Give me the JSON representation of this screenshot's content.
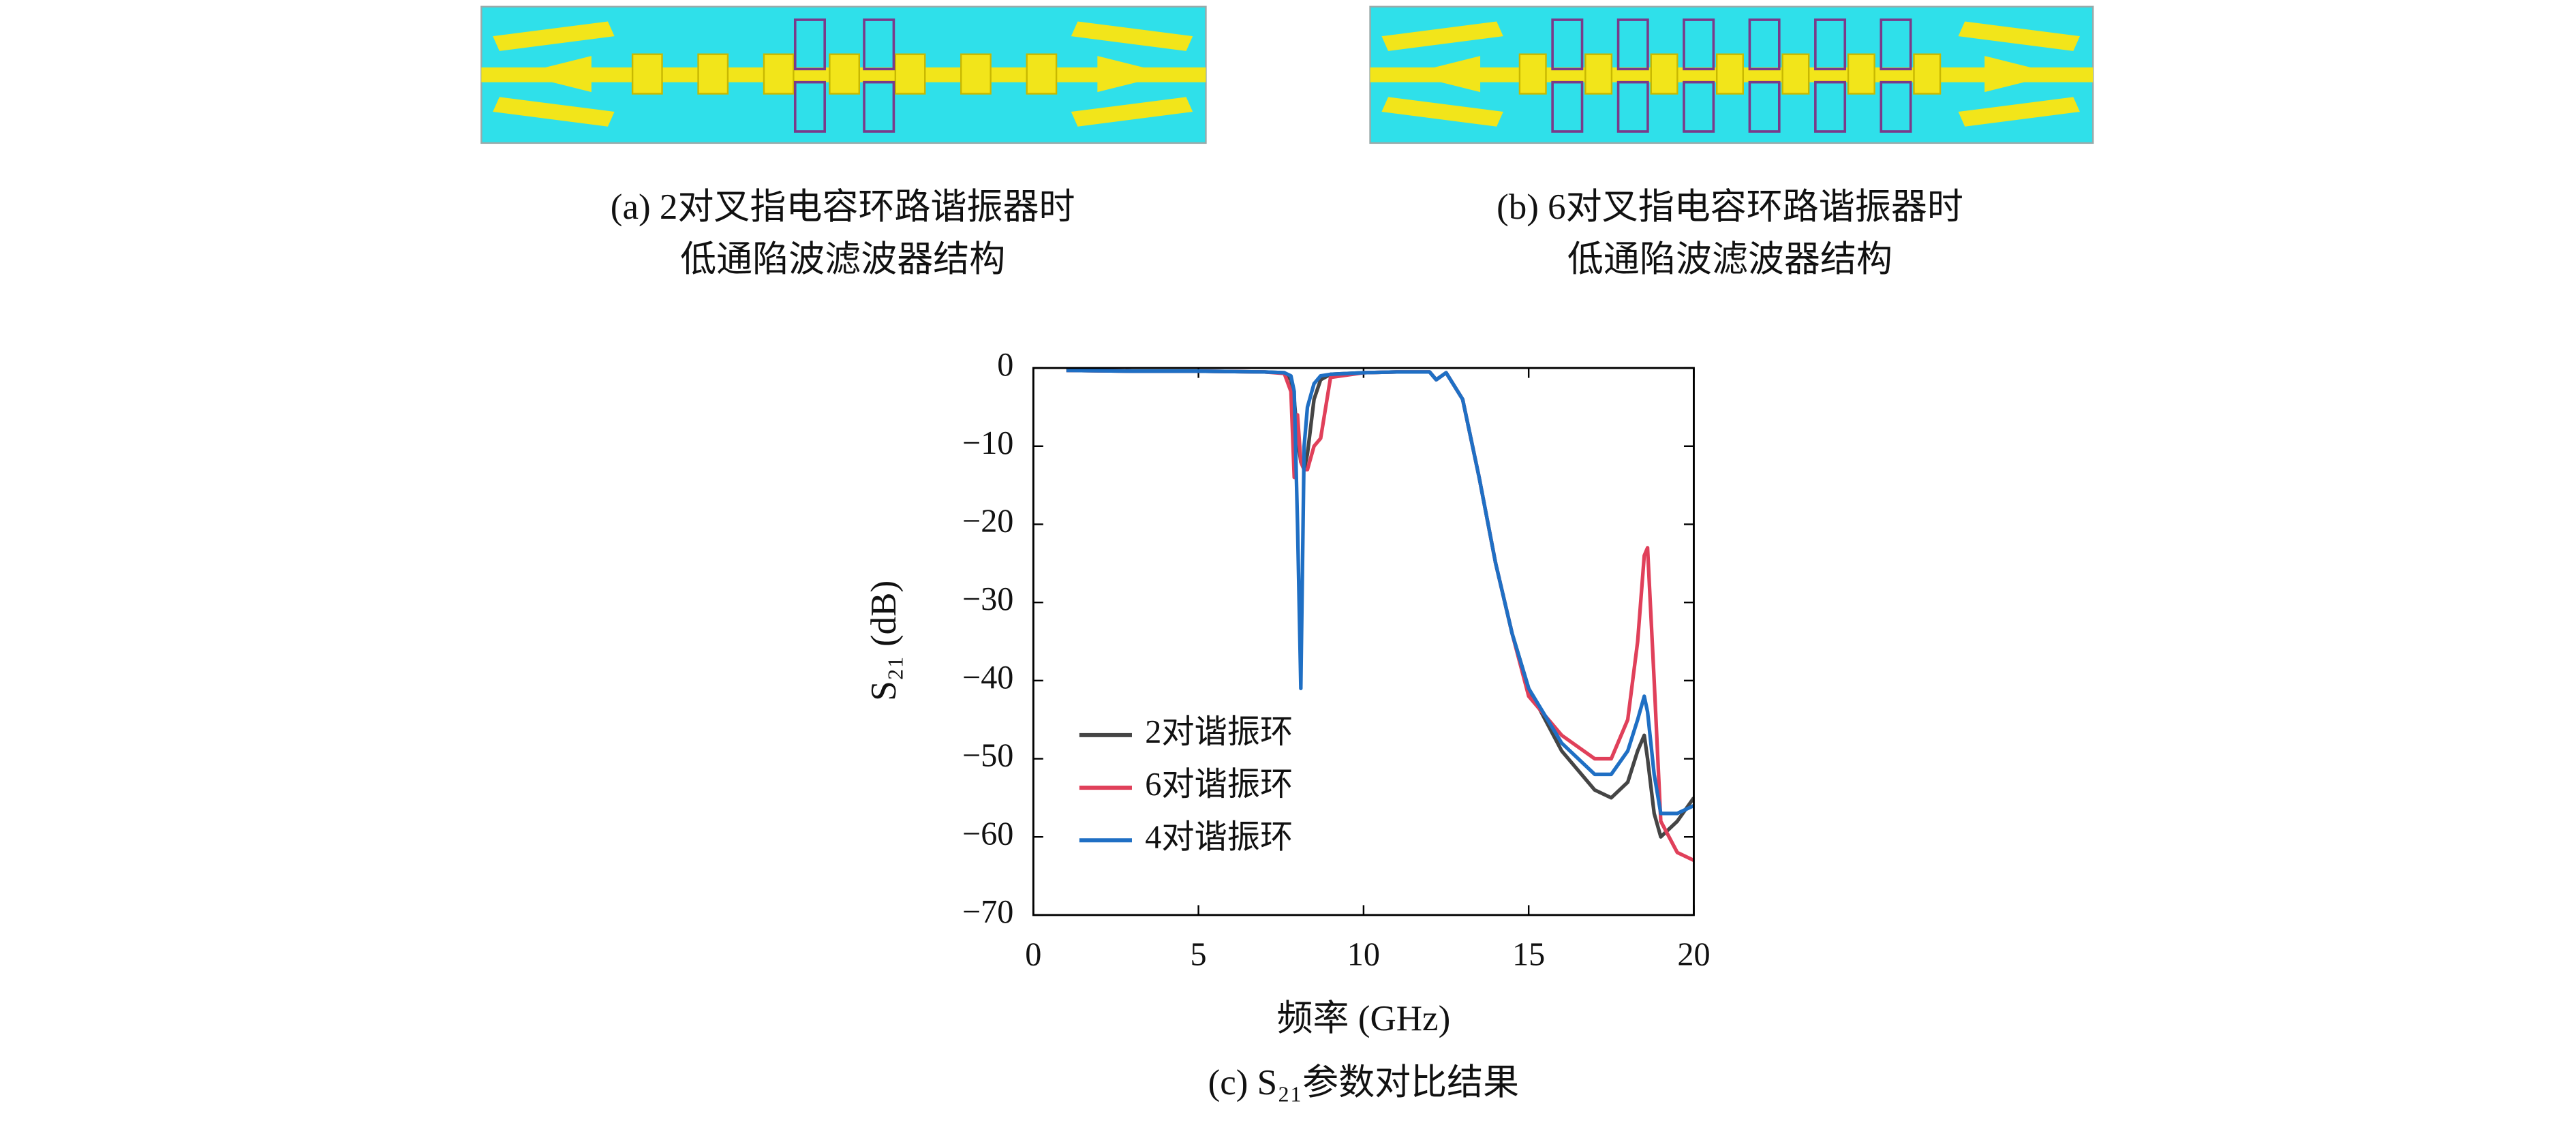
{
  "figures": [
    {
      "caption": [
        "(a) 2对叉指电容环路谐振器时",
        "低通陷波滤波器结构"
      ]
    },
    {
      "caption": [
        "(b) 6对叉指电容环路谐振器时",
        "低通陷波滤波器结构"
      ]
    }
  ],
  "chart_data": {
    "type": "line",
    "caption": "(c) S₂₁参数对比结果",
    "xlabel": "频率 (GHz)",
    "ylabel": "S₂₁ (dB)",
    "xlim": [
      0,
      20
    ],
    "xticks": [
      0,
      5,
      10,
      15,
      20
    ],
    "ylim": [
      -70,
      0
    ],
    "yticks": [
      {
        "value": 0,
        "label": "0"
      },
      {
        "value": -10,
        "label": "−10"
      },
      {
        "value": -20,
        "label": "−20"
      },
      {
        "value": -30,
        "label": "−30"
      },
      {
        "value": -40,
        "label": "−40"
      },
      {
        "value": -50,
        "label": "−50"
      },
      {
        "value": -60,
        "label": "−60"
      },
      {
        "value": -70,
        "label": "−70"
      }
    ],
    "grid": false,
    "legend": "center left",
    "x": [
      1,
      3,
      5,
      7,
      7.6,
      7.8,
      7.9,
      8.0,
      8.1,
      8.2,
      8.3,
      8.5,
      8.7,
      9,
      10,
      11,
      12,
      12.2,
      12.5,
      13,
      13.5,
      14,
      14.5,
      15,
      16,
      17,
      17.5,
      18,
      18.3,
      18.5,
      18.6,
      18.8,
      19,
      19.5,
      20
    ],
    "series": [
      {
        "name": "2对谐振环",
        "color": "#454545",
        "values": [
          -0.3,
          -0.4,
          -0.4,
          -0.5,
          -0.6,
          -1.5,
          -4,
          -9,
          -12,
          -13,
          -11,
          -4,
          -1.5,
          -0.8,
          -0.6,
          -0.5,
          -0.5,
          -1.5,
          -0.6,
          -4,
          -14,
          -25,
          -34,
          -41,
          -49,
          -54,
          -55,
          -53,
          -49,
          -47,
          -50,
          -57,
          -60,
          -58,
          -55
        ]
      },
      {
        "name": "6对谐振环",
        "color": "#e0405a",
        "values": [
          -0.3,
          -0.4,
          -0.4,
          -0.5,
          -0.7,
          -3,
          -14,
          -6,
          -12,
          -13,
          -13,
          -10,
          -9,
          -1.2,
          -0.6,
          -0.5,
          -0.5,
          -1.5,
          -0.6,
          -4,
          -14,
          -25,
          -34,
          -42,
          -47,
          -50,
          -50,
          -45,
          -35,
          -24,
          -23,
          -40,
          -58,
          -62,
          -63
        ]
      },
      {
        "name": "4对谐振环",
        "color": "#1f6fc4",
        "values": [
          -0.3,
          -0.4,
          -0.4,
          -0.5,
          -0.6,
          -1,
          -3,
          -20,
          -41,
          -10,
          -5,
          -2,
          -1,
          -0.8,
          -0.6,
          -0.5,
          -0.5,
          -1.5,
          -0.6,
          -4,
          -14,
          -25,
          -34,
          -41,
          -48,
          -52,
          -52,
          -49,
          -45,
          -42,
          -44,
          -52,
          -57,
          -57,
          -56
        ]
      }
    ]
  }
}
